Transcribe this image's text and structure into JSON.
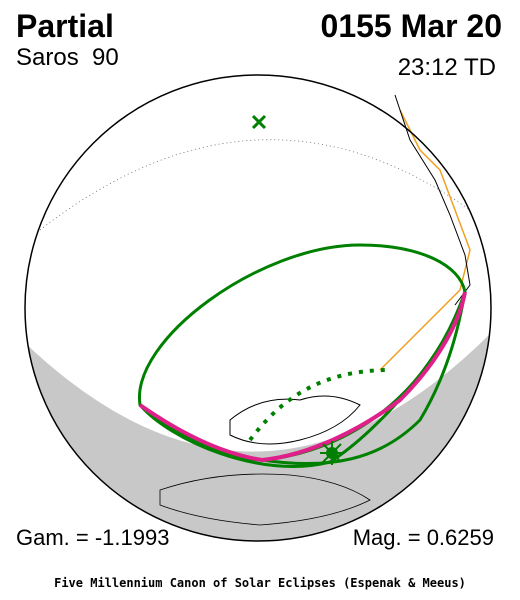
{
  "header": {
    "title": "Partial",
    "saros": "Saros  90",
    "date": "0155 Mar 20",
    "time": "23:12 TD"
  },
  "footer": {
    "gamma": "Gam. = -1.1993",
    "magnitude": "Mag. = 0.6259",
    "credit": "Five Millennium Canon of Solar Eclipses (Espenak & Meeus)"
  }
}
